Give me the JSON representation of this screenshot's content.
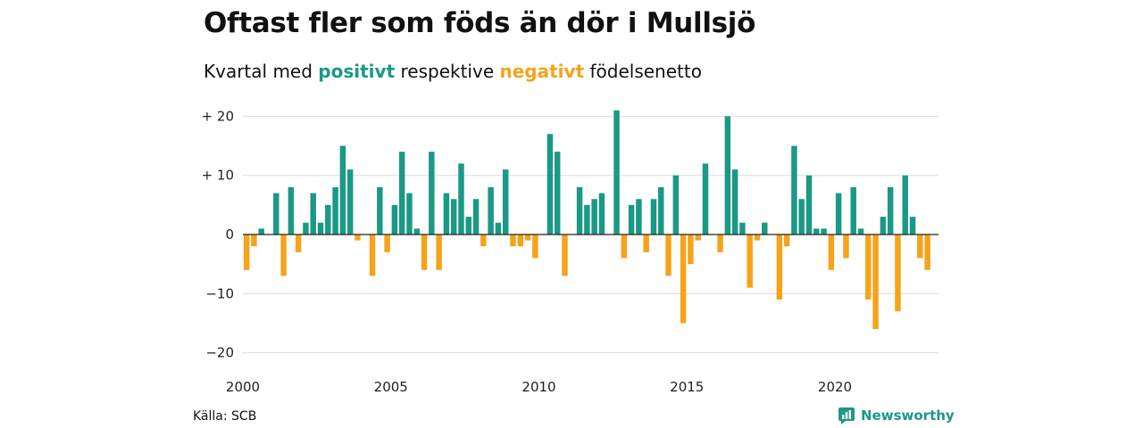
{
  "title": "Oftast fler som föds än dör i Mullsjö",
  "subtitle": {
    "prefix": "Kvartal med",
    "positive_word": "positivt",
    "middle": "respektive",
    "negative_word": "negativt",
    "suffix": "födelsenetto"
  },
  "source": "Källa: SCB",
  "brand": {
    "name": "Newsworthy",
    "icon": "newsworthy-logo-icon"
  },
  "colors": {
    "positive": "#1a9985",
    "negative": "#f5a31a",
    "grid": "#dddddd",
    "axis": "#222222"
  },
  "chart_data": {
    "type": "bar",
    "x_start_year": 2000,
    "x_end_year": 2023.25,
    "periods_per_year": 4,
    "values": [
      -6,
      -2,
      1,
      0,
      7,
      -7,
      8,
      -3,
      2,
      7,
      2,
      5,
      8,
      15,
      11,
      -1,
      0,
      -7,
      8,
      -3,
      5,
      14,
      7,
      1,
      -6,
      14,
      -6,
      7,
      6,
      12,
      3,
      6,
      -2,
      8,
      2,
      11,
      -2,
      -2,
      -1,
      -4,
      0,
      17,
      14,
      -7,
      0,
      8,
      5,
      6,
      7,
      0,
      21,
      -4,
      5,
      6,
      -3,
      6,
      8,
      -7,
      10,
      -15,
      -5,
      -1,
      12,
      0,
      -3,
      20,
      11,
      2,
      -9,
      -1,
      2,
      0,
      -11,
      -2,
      15,
      6,
      10,
      1,
      1,
      -6,
      7,
      -4,
      8,
      1,
      -11,
      -16,
      3,
      8,
      -13,
      10,
      3,
      -4,
      -6
    ],
    "ylim": [
      -22,
      22
    ],
    "yticks": [
      {
        "value": 20,
        "label": "+ 20"
      },
      {
        "value": 10,
        "label": "+ 10"
      },
      {
        "value": 0,
        "label": "0"
      },
      {
        "value": -10,
        "label": "−10"
      },
      {
        "value": -20,
        "label": "−20"
      }
    ],
    "xticks": [
      {
        "value": 2000,
        "label": "2000"
      },
      {
        "value": 2005,
        "label": "2005"
      },
      {
        "value": 2010,
        "label": "2010"
      },
      {
        "value": 2015,
        "label": "2015"
      },
      {
        "value": 2020,
        "label": "2020"
      }
    ],
    "grid": true,
    "legend": "none"
  }
}
